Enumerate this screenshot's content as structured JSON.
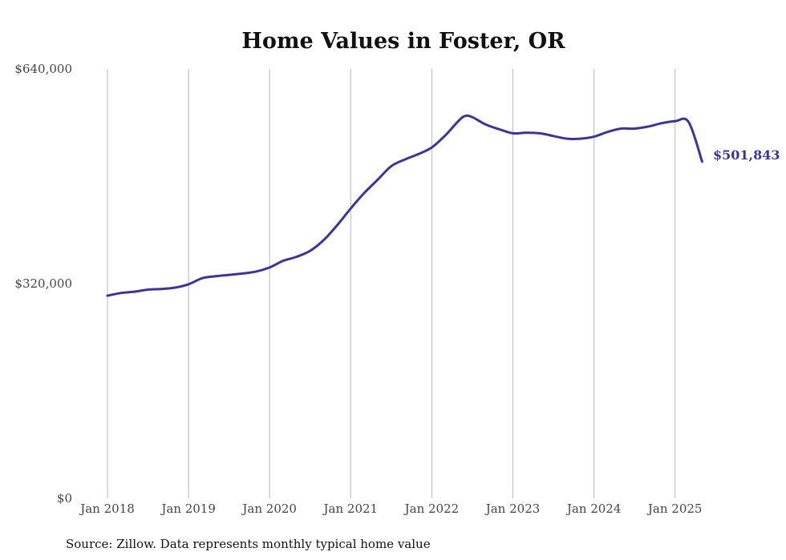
{
  "chart_data": {
    "type": "line",
    "title": "Home Values in Foster, OR",
    "xlabel": "",
    "ylabel": "",
    "x_ticks": [
      "Jan 2018",
      "Jan 2019",
      "Jan 2020",
      "Jan 2021",
      "Jan 2022",
      "Jan 2023",
      "Jan 2024",
      "Jan 2025"
    ],
    "y_ticks": [
      "$0",
      "$320,000",
      "$640,000"
    ],
    "ylim": [
      0,
      640000
    ],
    "xlim": [
      "2018-01",
      "2025-05"
    ],
    "grid": "vertical",
    "line_color": "#3d3595",
    "series": [
      {
        "x": [
          "2018-01",
          "2018-03",
          "2018-05",
          "2018-07",
          "2018-09",
          "2018-11",
          "2019-01",
          "2019-03",
          "2019-05",
          "2019-07",
          "2019-09",
          "2019-11",
          "2020-01",
          "2020-03",
          "2020-05",
          "2020-07",
          "2020-09",
          "2020-11",
          "2021-01",
          "2021-03",
          "2021-05",
          "2021-07",
          "2021-09",
          "2021-11",
          "2022-01",
          "2022-03",
          "2022-05",
          "2022-06",
          "2022-07",
          "2022-09",
          "2022-11",
          "2023-01",
          "2023-03",
          "2023-05",
          "2023-07",
          "2023-09",
          "2023-11",
          "2024-01",
          "2024-03",
          "2024-05",
          "2024-07",
          "2024-09",
          "2024-11",
          "2025-01",
          "2025-03",
          "2025-05"
        ],
        "values": [
          302000,
          306000,
          308000,
          311000,
          312000,
          314000,
          319000,
          328000,
          331000,
          333000,
          335000,
          338000,
          344000,
          354000,
          360000,
          369000,
          385000,
          407000,
          432000,
          455000,
          475000,
          495000,
          505000,
          513000,
          523000,
          541000,
          563000,
          570000,
          568000,
          557000,
          550000,
          544000,
          545000,
          544000,
          540000,
          536000,
          536000,
          539000,
          546000,
          551000,
          551000,
          554000,
          559000,
          562000,
          561000,
          501843
        ]
      }
    ],
    "end_label": "$501,843",
    "source": "Source: Zillow. Data represents monthly typical home value"
  }
}
